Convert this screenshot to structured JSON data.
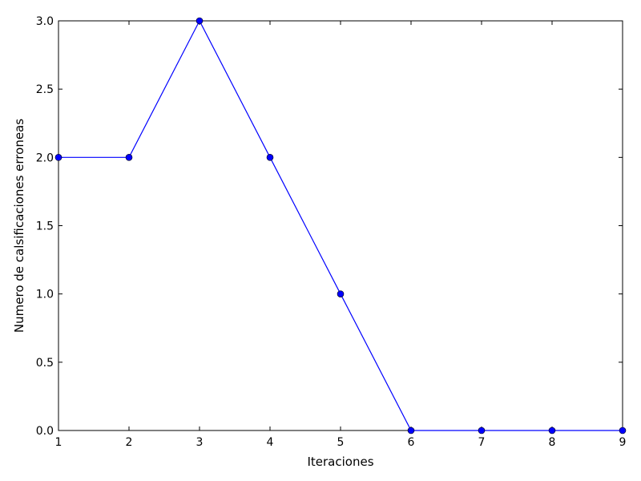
{
  "chart_data": {
    "type": "line",
    "title": "",
    "xlabel": "Iteraciones",
    "ylabel": "Numero de calsificaciones erroneas",
    "x": [
      1,
      2,
      3,
      4,
      5,
      6,
      7,
      8,
      9
    ],
    "series": [
      {
        "values": [
          2,
          2,
          3,
          2,
          1,
          0,
          0,
          0,
          0
        ],
        "color": "#0000ff",
        "marker": "circle"
      }
    ],
    "xlim": [
      1,
      9
    ],
    "ylim": [
      0,
      3
    ],
    "xticks": [
      "1",
      "2",
      "3",
      "4",
      "5",
      "6",
      "7",
      "8",
      "9"
    ],
    "yticks": [
      "0.0",
      "0.5",
      "1.0",
      "1.5",
      "2.0",
      "2.5",
      "3.0"
    ],
    "grid": false,
    "legend": "none"
  }
}
